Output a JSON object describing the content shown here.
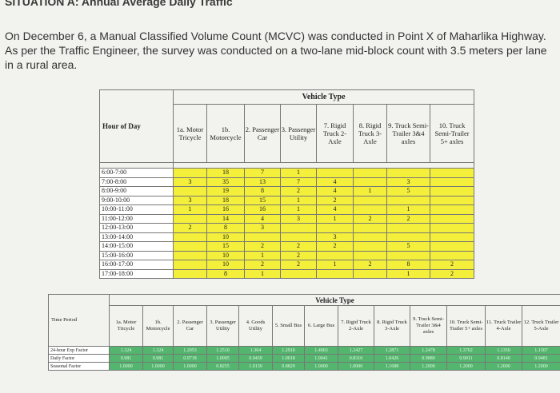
{
  "heading": "SITUATION A: Annual Average Daily Traffic",
  "paragraph": "On December 6, a Manual Classified Volume Count (MCVC) was conducted in Point X of Maharlika Highway. As per the Traffic Engineer, the survey was conducted on a two-lane mid-block count with 3.5 meters per lane in a rural area.",
  "table1": {
    "vehicle_type": "Vehicle Type",
    "hour_header": "Hour of Day",
    "columns": [
      "1a. Motor Tricycle",
      "1b. Motorcycle",
      "2. Passenger Car",
      "3. Passenger Utility",
      "7. Rigid Truck 2-Axle",
      "8. Rigid Truck 3-Axle",
      "9. Truck Semi-Trailer 3&4 axles",
      "10. Truck Semi-Trailer 5+ axles"
    ],
    "rows": [
      {
        "h": "6:00-7:00",
        "v": [
          "",
          "18",
          "7",
          "1",
          "",
          "",
          "",
          ""
        ]
      },
      {
        "h": "7:00-8:00",
        "v": [
          "3",
          "35",
          "13",
          "7",
          "4",
          "",
          "3",
          ""
        ]
      },
      {
        "h": "8:00-9:00",
        "v": [
          "",
          "19",
          "8",
          "2",
          "4",
          "1",
          "5",
          ""
        ]
      },
      {
        "h": "9:00-10:00",
        "v": [
          "3",
          "18",
          "15",
          "1",
          "2",
          "",
          "",
          ""
        ]
      },
      {
        "h": "10:00-11:00",
        "v": [
          "1",
          "16",
          "16",
          "1",
          "4",
          "",
          "1",
          ""
        ]
      },
      {
        "h": "11:00-12:00",
        "v": [
          "",
          "14",
          "4",
          "3",
          "1",
          "2",
          "2",
          ""
        ]
      },
      {
        "h": "12:00-13:00",
        "v": [
          "2",
          "8",
          "3",
          "",
          "",
          "",
          "",
          ""
        ]
      },
      {
        "h": "13:00-14:00",
        "v": [
          "",
          "10",
          "",
          "",
          "3",
          "",
          "",
          ""
        ]
      },
      {
        "h": "14:00-15:00",
        "v": [
          "",
          "15",
          "2",
          "2",
          "2",
          "",
          "5",
          ""
        ]
      },
      {
        "h": "15:00-16:00",
        "v": [
          "",
          "10",
          "1",
          "2",
          "",
          "",
          "",
          ""
        ]
      },
      {
        "h": "16:00-17:00",
        "v": [
          "",
          "10",
          "2",
          "2",
          "1",
          "2",
          "8",
          "2"
        ]
      },
      {
        "h": "17:00-18:00",
        "v": [
          "",
          "8",
          "1",
          "",
          "",
          "",
          "1",
          "2"
        ]
      }
    ]
  },
  "table2": {
    "vehicle_type": "Vehicle Type",
    "period_header": "Time Period",
    "columns": [
      "1a. Motor Tricycle",
      "1b. Motorcycle",
      "2. Passenger Car",
      "3. Passenger Utility",
      "4. Goods Utility",
      "5. Small Bus",
      "6. Large Bus",
      "7. Rigid Truck 2-Axle",
      "8. Rigid Truck 3-Axle",
      "9. Truck Semi-Trailer 3&4 axles",
      "10. Truck Semi-Trailer 5+ axles",
      "11. Truck Trailer 4-Axle",
      "12. Truck Trailer 5-Axle"
    ],
    "rows": [
      {
        "label": "24-hour Exp Factor",
        "v": [
          "1.324",
          "1.324",
          "1.2053",
          "1.2510",
          "1.364",
          "1.2910",
          "1.4903",
          "1.2427",
          "1.2871",
          "1.2478",
          "1.3702",
          "1.1350",
          "1.1507"
        ]
      },
      {
        "label": "Daily Factor",
        "v": [
          "0.981",
          "0.981",
          "0.9718",
          "1.0095",
          "0.9439",
          "1.0018",
          "1.0041",
          "0.8310",
          "1.0426",
          "0.9889",
          "0.9011",
          "0.8140",
          "0.9481"
        ]
      },
      {
        "label": "Seasonal Factor",
        "v": [
          "1.0000",
          "1.0000",
          "1.0000",
          "0.8255",
          "1.0139",
          "0.8829",
          "1.0000",
          "1.0000",
          "1.1688",
          "1.2000",
          "1.2000",
          "1.2000",
          "1.2000"
        ]
      }
    ]
  }
}
